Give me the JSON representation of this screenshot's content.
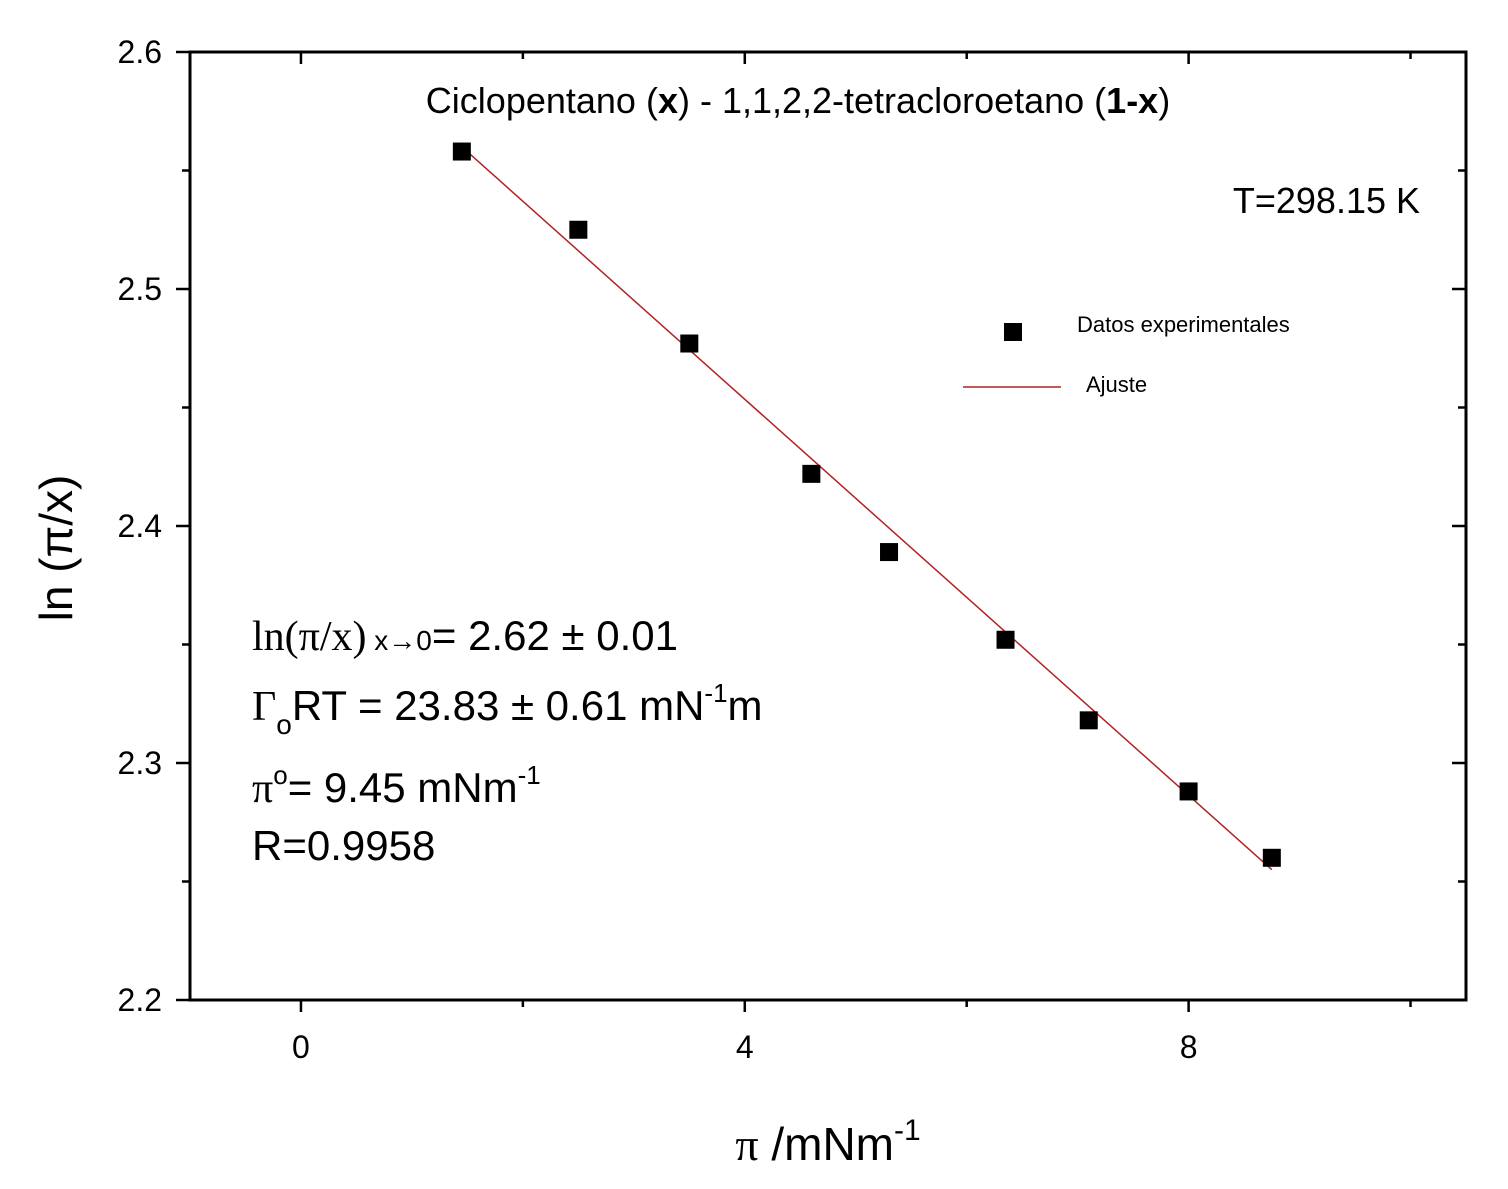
{
  "chart_data": {
    "type": "scatter",
    "title_parts": [
      {
        "text": "Ciclopentano (",
        "bold": false
      },
      {
        "text": "x",
        "bold": true
      },
      {
        "text": ") - 1,1,2,2-tetracloroetano (",
        "bold": false
      },
      {
        "text": "1-x",
        "bold": true
      },
      {
        "text": ")",
        "bold": false
      }
    ],
    "temperature_label": "T=298.15 K",
    "xlabel": {
      "symbol": "π",
      "text": " /mNm",
      "sup": "-1"
    },
    "ylabel": "ln (π/x)",
    "xlim": [
      -1,
      10.5
    ],
    "ylim": [
      2.2,
      2.6
    ],
    "x_ticks": [
      0,
      4,
      8
    ],
    "x_minor_ticks": [
      2,
      6,
      10
    ],
    "y_ticks": [
      2.2,
      2.3,
      2.4,
      2.5,
      2.6
    ],
    "y_minor_ticks": [
      2.25,
      2.35,
      2.45,
      2.55
    ],
    "tick_labels_x": [
      "0",
      "4",
      "8"
    ],
    "tick_labels_y": [
      "2.2",
      "2.3",
      "2.4",
      "2.5",
      "2.6"
    ],
    "series": [
      {
        "name": "Datos experimentales",
        "kind": "points",
        "color": "#000000",
        "x": [
          1.45,
          2.5,
          3.5,
          4.6,
          5.3,
          6.35,
          7.1,
          8.0,
          8.75
        ],
        "y": [
          2.558,
          2.525,
          2.477,
          2.422,
          2.389,
          2.352,
          2.318,
          2.288,
          2.26
        ]
      },
      {
        "name": "Ajuste",
        "kind": "line",
        "color": "#b22222",
        "x": [
          1.45,
          8.75
        ],
        "y": [
          2.56,
          2.255
        ]
      }
    ],
    "legend_position": "upper-right",
    "annotations": {
      "line1": {
        "main": "ln(π/x)",
        "sub": " x→0",
        "rest": "= 2.62 ± 0.01"
      },
      "line2": {
        "gamma": "Γ",
        "sub": "o",
        "main": "RT = 23.83 ± 0.61 mN",
        "sup": "-1",
        "unit": "m"
      },
      "line3": {
        "main": "π",
        "sup": "o",
        "rest": "= 9.45 mNm",
        "sup2": "-1"
      },
      "line4": "R=0.9958"
    }
  }
}
